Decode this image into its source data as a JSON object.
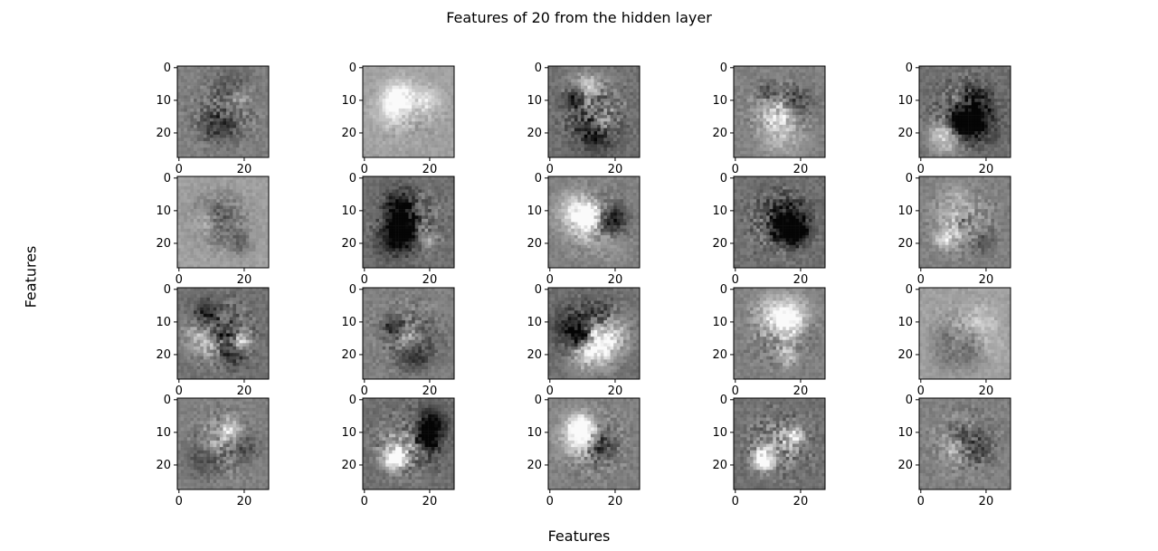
{
  "title": "Features of 20 from the hidden layer",
  "chart_data": {
    "type": "heatmap",
    "title": "Features of 20 from the hidden layer",
    "xlabel": "Features",
    "ylabel": "Features",
    "grid": {
      "rows": 4,
      "cols": 5
    },
    "colormap": "gray",
    "image_size": [
      28,
      28
    ],
    "xlim": [
      0,
      27
    ],
    "ylim": [
      27,
      0
    ],
    "xticks": [
      0,
      20
    ],
    "yticks": [
      0,
      10,
      20
    ],
    "panels": [
      {
        "index": 0,
        "contrast": "medium"
      },
      {
        "index": 1,
        "contrast": "low"
      },
      {
        "index": 2,
        "contrast": "high"
      },
      {
        "index": 3,
        "contrast": "medium"
      },
      {
        "index": 4,
        "contrast": "high"
      },
      {
        "index": 5,
        "contrast": "low"
      },
      {
        "index": 6,
        "contrast": "high"
      },
      {
        "index": 7,
        "contrast": "medium"
      },
      {
        "index": 8,
        "contrast": "high"
      },
      {
        "index": 9,
        "contrast": "medium"
      },
      {
        "index": 10,
        "contrast": "high"
      },
      {
        "index": 11,
        "contrast": "medium"
      },
      {
        "index": 12,
        "contrast": "high"
      },
      {
        "index": 13,
        "contrast": "medium"
      },
      {
        "index": 14,
        "contrast": "low"
      },
      {
        "index": 15,
        "contrast": "medium"
      },
      {
        "index": 16,
        "contrast": "high"
      },
      {
        "index": 17,
        "contrast": "medium"
      },
      {
        "index": 18,
        "contrast": "high"
      },
      {
        "index": 19,
        "contrast": "medium"
      }
    ]
  }
}
